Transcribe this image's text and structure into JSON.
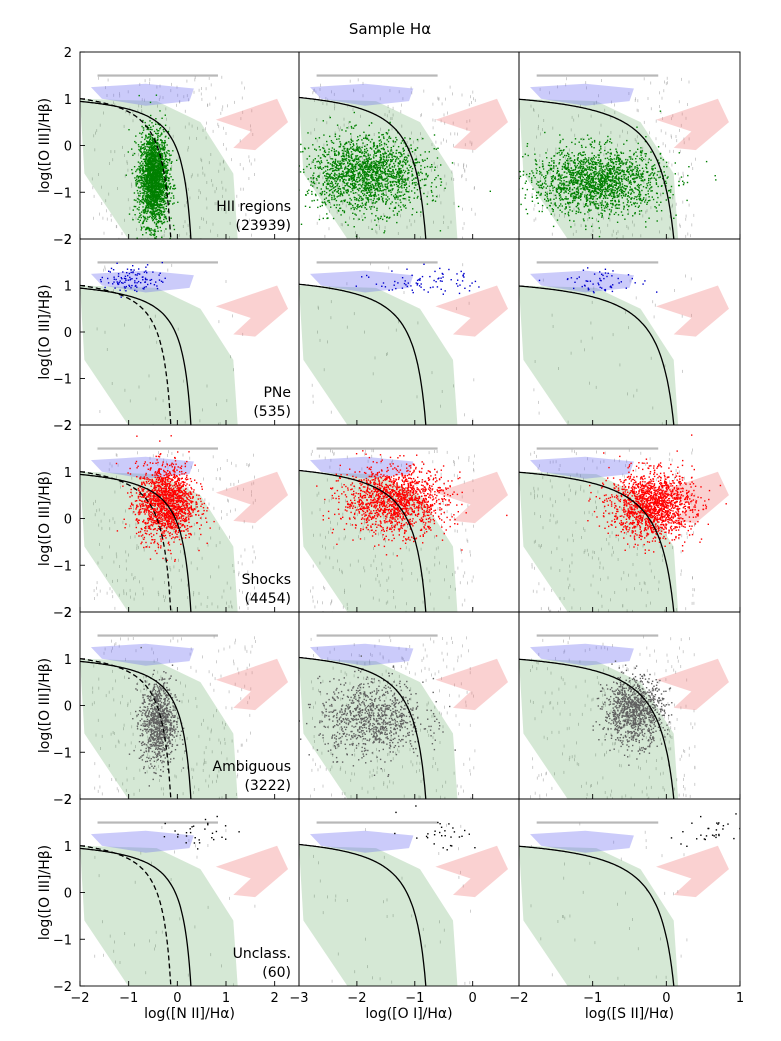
{
  "title": "Sample Hα",
  "chart_data": {
    "type": "scatter",
    "title": "Sample Hα",
    "ylabel": "log([O III]/Hβ)",
    "ylim": [
      -2,
      2
    ],
    "yticks": [
      -2,
      -1,
      0,
      1,
      2
    ],
    "columns": [
      {
        "xlabel": "log([N II]/Hα)",
        "xlim": [
          -2,
          2.5
        ],
        "xticks": [
          -2,
          -1,
          0,
          1,
          2
        ]
      },
      {
        "xlabel": "log([O I]/Hα)",
        "xlim": [
          -3,
          0.8
        ],
        "xticks": [
          -3,
          -2,
          -1,
          0
        ]
      },
      {
        "xlabel": "log([S II]/Hα)",
        "xlim": [
          -2,
          1
        ],
        "xticks": [
          -2,
          -1,
          0,
          1
        ]
      }
    ],
    "rows": [
      {
        "label": "HII regions",
        "count": "(23939)",
        "color": "#008000"
      },
      {
        "label": "PNe",
        "count": "(535)",
        "color": "#0000cc"
      },
      {
        "label": "Shocks",
        "count": "(4454)",
        "color": "#ff0000"
      },
      {
        "label": "Ambiguous",
        "count": "(3222)",
        "color": "#606060"
      },
      {
        "label": "Unclass.",
        "count": "(60)",
        "color": "#000000"
      }
    ],
    "region_colors": {
      "hii": "#2e8b2e",
      "pne": "#6a6af0",
      "snr": "#f27a7a",
      "background": "#9a9a9a"
    },
    "demarcation": [
      {
        "column": 0,
        "style": "solid",
        "a": 0.61,
        "b": 0.47,
        "c": 1.19
      },
      {
        "column": 0,
        "style": "dashed",
        "a": 0.61,
        "b": 0.05,
        "c": 1.3
      },
      {
        "column": 1,
        "style": "solid",
        "a": 0.73,
        "b": -0.59,
        "c": 1.33
      },
      {
        "column": 2,
        "style": "solid",
        "a": 0.72,
        "b": 0.32,
        "c": 1.3
      }
    ],
    "clusters": [
      [
        {
          "cx": -0.5,
          "cy": -0.7,
          "sx": 0.15,
          "sy": 0.5,
          "n": 2200
        },
        {
          "cx": -1.85,
          "cy": -0.6,
          "sx": 0.5,
          "sy": 0.4,
          "n": 1800
        },
        {
          "cx": -0.95,
          "cy": -0.75,
          "sx": 0.45,
          "sy": 0.35,
          "n": 1800
        }
      ],
      [
        {
          "cx": -0.9,
          "cy": 1.15,
          "sx": 0.3,
          "sy": 0.15,
          "n": 110
        },
        {
          "cx": -0.8,
          "cy": 1.1,
          "sx": 0.45,
          "sy": 0.15,
          "n": 80
        },
        {
          "cx": -0.85,
          "cy": 1.1,
          "sx": 0.3,
          "sy": 0.13,
          "n": 60
        }
      ],
      [
        {
          "cx": -0.25,
          "cy": 0.35,
          "sx": 0.3,
          "sy": 0.4,
          "n": 1600
        },
        {
          "cx": -1.35,
          "cy": 0.4,
          "sx": 0.45,
          "sy": 0.35,
          "n": 1500
        },
        {
          "cx": -0.2,
          "cy": 0.3,
          "sx": 0.28,
          "sy": 0.35,
          "n": 1600
        }
      ],
      [
        {
          "cx": -0.4,
          "cy": -0.35,
          "sx": 0.18,
          "sy": 0.45,
          "n": 900
        },
        {
          "cx": -1.75,
          "cy": -0.25,
          "sx": 0.45,
          "sy": 0.4,
          "n": 900
        },
        {
          "cx": -0.45,
          "cy": -0.1,
          "sx": 0.2,
          "sy": 0.35,
          "n": 1000
        }
      ],
      [
        {
          "cx": 0.5,
          "cy": 1.3,
          "sx": 0.45,
          "sy": 0.2,
          "n": 30
        },
        {
          "cx": -0.6,
          "cy": 1.3,
          "sx": 0.35,
          "sy": 0.2,
          "n": 30
        },
        {
          "cx": 0.6,
          "cy": 1.35,
          "sx": 0.25,
          "sy": 0.2,
          "n": 30
        }
      ]
    ]
  }
}
